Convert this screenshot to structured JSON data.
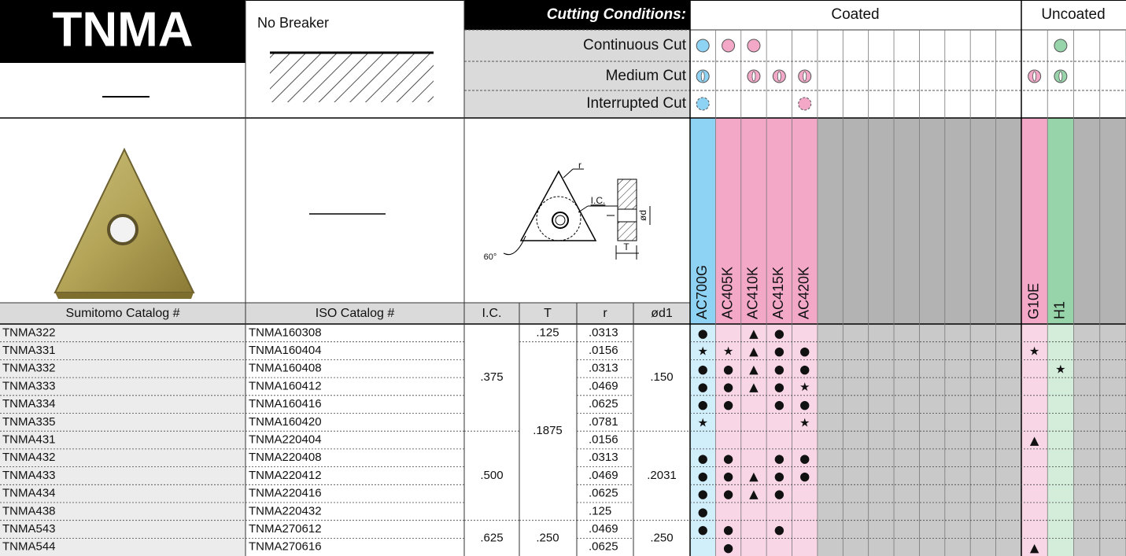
{
  "title": "TNMA",
  "breaker": "No Breaker",
  "conditions": {
    "heading": "Cutting Conditions:",
    "rows": [
      "Continuous Cut",
      "Medium Cut",
      "Interrupted Cut"
    ]
  },
  "groups": [
    "Coated",
    "Uncoated"
  ],
  "grades": [
    "AC700G",
    "AC405K",
    "AC410K",
    "AC415K",
    "AC420K",
    "G10E",
    "H1"
  ],
  "diagram": {
    "r": "r",
    "ic": "I.C.",
    "d": "ød",
    "t": "T",
    "angle": "60°"
  },
  "table": {
    "columns": [
      "Sumitomo Catalog #",
      "ISO Catalog #",
      "I.C.",
      "T",
      "r",
      "ød1"
    ],
    "rows": [
      {
        "sumitomo": "TNMA322",
        "iso": "TNMA160308",
        "ic": ".375",
        "t": ".125",
        "r": ".0313",
        "d1": ".150",
        "marks": [
          "●",
          null,
          "▲",
          "●",
          null,
          null,
          null
        ]
      },
      {
        "sumitomo": "TNMA331",
        "iso": "TNMA160404",
        "ic": null,
        "t": ".1875",
        "r": ".0156",
        "d1": null,
        "marks": [
          "★",
          "★",
          "▲",
          "●",
          "●",
          "★",
          null
        ]
      },
      {
        "sumitomo": "TNMA332",
        "iso": "TNMA160408",
        "ic": null,
        "t": null,
        "r": ".0313",
        "d1": null,
        "marks": [
          "●",
          "●",
          "▲",
          "●",
          "●",
          null,
          "★"
        ]
      },
      {
        "sumitomo": "TNMA333",
        "iso": "TNMA160412",
        "ic": null,
        "t": null,
        "r": ".0469",
        "d1": null,
        "marks": [
          "●",
          "●",
          "▲",
          "●",
          "★",
          null,
          null
        ]
      },
      {
        "sumitomo": "TNMA334",
        "iso": "TNMA160416",
        "ic": null,
        "t": null,
        "r": ".0625",
        "d1": null,
        "marks": [
          "●",
          "●",
          null,
          "●",
          "●",
          null,
          null
        ]
      },
      {
        "sumitomo": "TNMA335",
        "iso": "TNMA160420",
        "ic": null,
        "t": null,
        "r": ".0781",
        "d1": null,
        "marks": [
          "★",
          null,
          null,
          null,
          "★",
          null,
          null
        ]
      },
      {
        "sumitomo": "TNMA431",
        "iso": "TNMA220404",
        "ic": ".500",
        "t": null,
        "r": ".0156",
        "d1": ".2031",
        "marks": [
          null,
          null,
          null,
          null,
          null,
          "▲",
          null
        ]
      },
      {
        "sumitomo": "TNMA432",
        "iso": "TNMA220408",
        "ic": null,
        "t": null,
        "r": ".0313",
        "d1": null,
        "marks": [
          "●",
          "●",
          null,
          "●",
          "●",
          null,
          null
        ]
      },
      {
        "sumitomo": "TNMA433",
        "iso": "TNMA220412",
        "ic": null,
        "t": null,
        "r": ".0469",
        "d1": null,
        "marks": [
          "●",
          "●",
          "▲",
          "●",
          "●",
          null,
          null
        ]
      },
      {
        "sumitomo": "TNMA434",
        "iso": "TNMA220416",
        "ic": null,
        "t": null,
        "r": ".0625",
        "d1": null,
        "marks": [
          "●",
          "●",
          "▲",
          "●",
          null,
          null,
          null
        ]
      },
      {
        "sumitomo": "TNMA438",
        "iso": "TNMA220432",
        "ic": null,
        "t": null,
        "r": ".125",
        "d1": null,
        "marks": [
          "●",
          null,
          null,
          null,
          null,
          null,
          null
        ]
      },
      {
        "sumitomo": "TNMA543",
        "iso": "TNMA270612",
        "ic": ".625",
        "t": ".250",
        "r": ".0469",
        "d1": ".250",
        "marks": [
          "●",
          "●",
          null,
          "●",
          null,
          null,
          null
        ]
      },
      {
        "sumitomo": "TNMA544",
        "iso": "TNMA270616",
        "ic": null,
        "t": null,
        "r": ".0625",
        "d1": null,
        "marks": [
          null,
          "●",
          null,
          null,
          null,
          "▲",
          null
        ]
      }
    ]
  }
}
